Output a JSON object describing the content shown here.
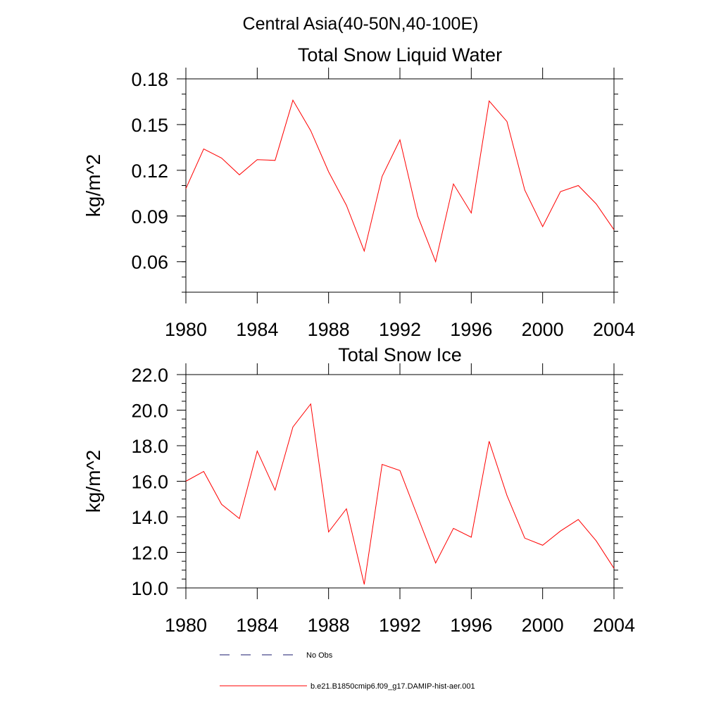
{
  "figure": {
    "main_title": "Central Asia(40-50N,40-100E)"
  },
  "colors": {
    "model_line": "#ff0000",
    "obs_line": "#1a1a6e",
    "axis": "#000000"
  },
  "legend": {
    "obs_label": "No Obs",
    "model_label": "b.e21.B1850cmip6.f09_g17.DAMIP-hist-aer.001"
  },
  "chart_data": [
    {
      "type": "line",
      "title": "Total Snow Liquid Water",
      "ylabel": "kg/m^2",
      "xlabel": "",
      "xlim": [
        1980,
        2004
      ],
      "ylim": [
        0.04,
        0.18
      ],
      "xticks": [
        1980,
        1984,
        1988,
        1992,
        1996,
        2000,
        2004
      ],
      "xtick_labels": [
        "1980",
        "1984",
        "1988",
        "1992",
        "1996",
        "2000",
        "2004"
      ],
      "yticks": [
        0.06,
        0.09,
        0.12,
        0.15,
        0.18
      ],
      "ytick_labels": [
        "0.06",
        "0.09",
        "0.12",
        "0.15",
        "0.18"
      ],
      "yminor_step": 0.01,
      "x": [
        1980,
        1981,
        1982,
        1983,
        1984,
        1985,
        1986,
        1987,
        1988,
        1989,
        1990,
        1991,
        1992,
        1993,
        1994,
        1995,
        1996,
        1997,
        1998,
        1999,
        2000,
        2001,
        2002,
        2003,
        2004
      ],
      "series": [
        {
          "name": "b.e21.B1850cmip6.f09_g17.DAMIP-hist-aer.001",
          "values": [
            0.108,
            0.134,
            0.128,
            0.117,
            0.127,
            0.1265,
            0.166,
            0.146,
            0.119,
            0.097,
            0.067,
            0.116,
            0.14,
            0.09,
            0.06,
            0.111,
            0.092,
            0.1655,
            0.152,
            0.107,
            0.083,
            0.106,
            0.11,
            0.098,
            0.081
          ]
        }
      ]
    },
    {
      "type": "line",
      "title": "Total Snow Ice",
      "ylabel": "kg/m^2",
      "xlabel": "",
      "xlim": [
        1980,
        2004
      ],
      "ylim": [
        10.0,
        22.0
      ],
      "xticks": [
        1980,
        1984,
        1988,
        1992,
        1996,
        2000,
        2004
      ],
      "xtick_labels": [
        "1980",
        "1984",
        "1988",
        "1992",
        "1996",
        "2000",
        "2004"
      ],
      "yticks": [
        10.0,
        12.0,
        14.0,
        16.0,
        18.0,
        20.0,
        22.0
      ],
      "ytick_labels": [
        "10.0",
        "12.0",
        "14.0",
        "16.0",
        "18.0",
        "20.0",
        "22.0"
      ],
      "yminor_step": 0.5,
      "x": [
        1980,
        1981,
        1982,
        1983,
        1984,
        1985,
        1986,
        1987,
        1988,
        1989,
        1990,
        1991,
        1992,
        1993,
        1994,
        1995,
        1996,
        1997,
        1998,
        1999,
        2000,
        2001,
        2002,
        2003,
        2004
      ],
      "series": [
        {
          "name": "b.e21.B1850cmip6.f09_g17.DAMIP-hist-aer.001",
          "values": [
            16.0,
            16.55,
            14.7,
            13.9,
            17.7,
            15.5,
            19.05,
            20.35,
            13.15,
            14.45,
            10.2,
            16.95,
            16.6,
            14.0,
            11.4,
            13.35,
            12.85,
            18.25,
            15.2,
            12.8,
            12.4,
            13.2,
            13.85,
            12.65,
            11.1
          ]
        }
      ]
    }
  ]
}
